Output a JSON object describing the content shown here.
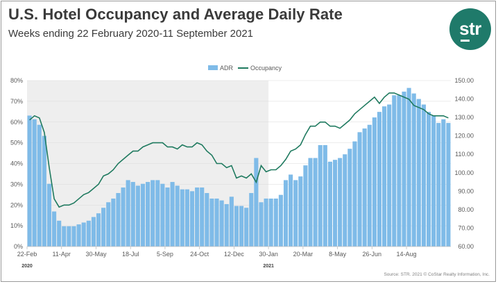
{
  "title": "U.S. Hotel Occupancy and Average Daily Rate",
  "subtitle": "Weeks ending 22 February 2020-11 September 2021",
  "logo": {
    "text": "str"
  },
  "colors": {
    "adr": "#7fbbe8",
    "occupancy": "#1f7a5f",
    "shade_2020": "#eeeeee",
    "logo": "#1f7a6a"
  },
  "source": "Source: STR. 2021 © CoStar Realty Information, Inc.",
  "chart_data": {
    "type": "bar",
    "title": "U.S. Hotel Occupancy and Average Daily Rate",
    "subtitle": "Weeks ending 22 February 2020-11 September 2021",
    "legend": [
      "ADR",
      "Occupancy"
    ],
    "legend_position": "top-center",
    "grid": true,
    "shaded_period": "2020",
    "x_tick_labels": [
      "22-Feb",
      "11-Apr",
      "30-May",
      "18-Jul",
      "5-Sep",
      "24-Oct",
      "12-Dec",
      "30-Jan",
      "20-Mar",
      "8-May",
      "26-Jun",
      "14-Aug"
    ],
    "x_tick_index": [
      0,
      7,
      14,
      21,
      28,
      35,
      42,
      49,
      56,
      63,
      70,
      77
    ],
    "year_labels": [
      {
        "label": "2020",
        "index": 0
      },
      {
        "label": "2021",
        "index": 49
      }
    ],
    "y_left": {
      "ticks": [
        "0%",
        "10%",
        "20%",
        "30%",
        "40%",
        "50%",
        "60%",
        "70%",
        "80%"
      ],
      "lim": [
        0,
        80
      ]
    },
    "y_right": {
      "ticks": [
        "60.00",
        "70.00",
        "80.00",
        "90.00",
        "100.00",
        "110.00",
        "120.00",
        "130.00",
        "140.00",
        "150.00"
      ],
      "lim": [
        60,
        150
      ]
    },
    "series": [
      {
        "name": "ADR",
        "type": "bar",
        "axis": "right",
        "values": [
          131,
          129,
          126,
          120,
          94,
          79,
          74,
          71,
          71,
          71,
          72,
          73,
          74,
          76,
          78,
          81,
          84,
          86,
          89,
          92,
          96,
          95,
          93,
          94,
          95,
          96,
          96,
          94,
          92,
          95,
          93,
          91,
          91,
          90,
          92,
          92,
          89,
          86,
          86,
          85,
          83,
          87,
          82,
          82,
          81,
          89,
          108,
          84,
          86,
          86,
          86,
          88,
          96,
          99,
          96,
          98,
          104,
          108,
          108,
          115,
          115,
          106,
          107,
          108,
          110,
          113,
          117,
          122,
          124,
          126,
          130,
          133,
          136,
          137,
          142,
          142,
          144,
          146,
          143,
          140,
          137,
          133,
          131,
          127,
          129,
          127
        ]
      },
      {
        "name": "Occupancy",
        "type": "line",
        "axis": "left",
        "values": [
          61,
          63,
          62,
          55,
          38,
          23,
          19,
          20,
          20,
          21,
          23,
          25,
          26,
          28,
          30,
          34,
          35,
          37,
          40,
          42,
          44,
          46,
          46,
          48,
          49,
          50,
          50,
          50,
          48,
          48,
          47,
          49,
          48,
          48,
          50,
          49,
          46,
          44,
          40,
          40,
          38,
          39,
          33,
          34,
          33,
          35,
          31,
          39,
          36,
          37,
          37,
          39,
          42,
          46,
          47,
          49,
          54,
          58,
          58,
          60,
          60,
          58,
          58,
          57,
          59,
          61,
          64,
          66,
          68,
          70,
          72,
          69,
          72,
          74,
          74,
          73,
          72,
          71,
          68,
          67,
          66,
          64,
          63,
          63,
          63,
          62
        ]
      }
    ]
  }
}
